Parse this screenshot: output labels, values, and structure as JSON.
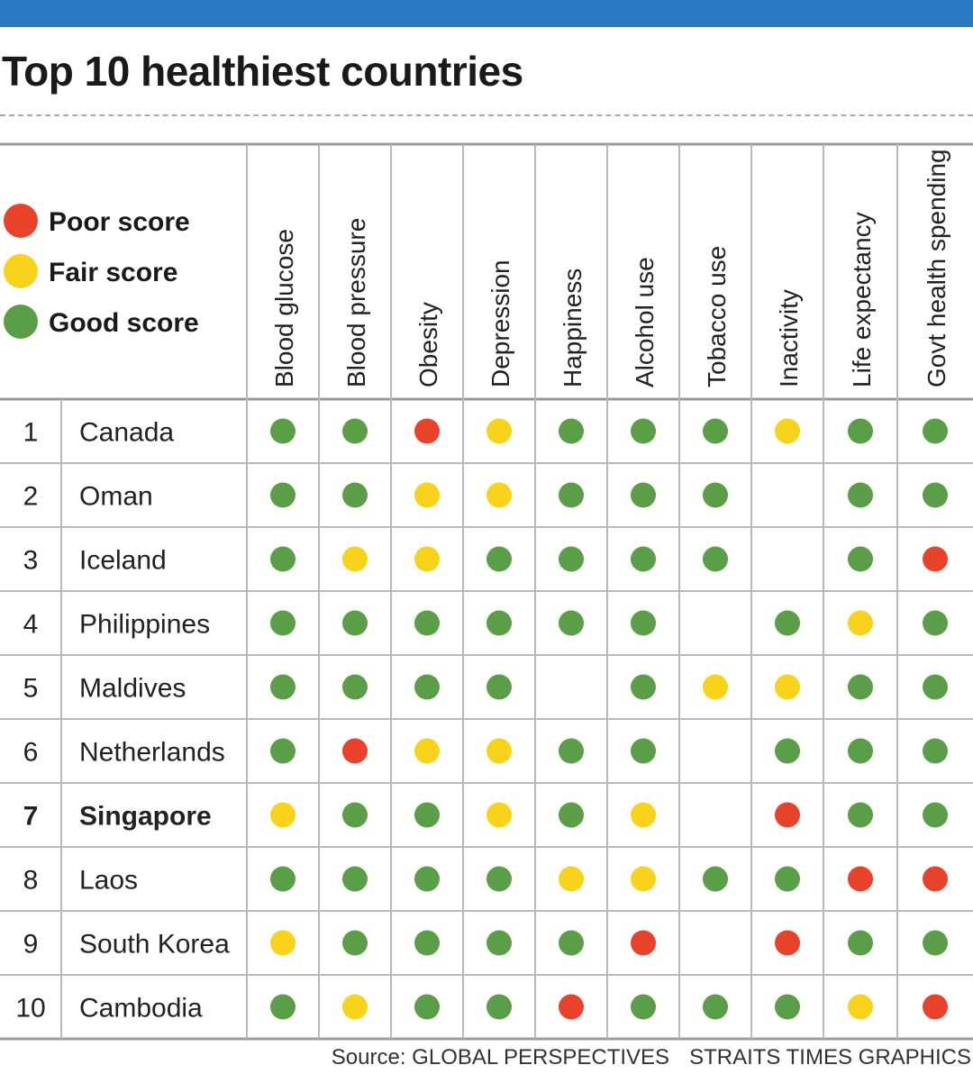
{
  "topbar_color": "#2a78bf",
  "title": "Top 10 healthiest countries",
  "legend": [
    {
      "key": "poor",
      "label": "Poor score",
      "color": "#e8432a"
    },
    {
      "key": "fair",
      "label": "Fair score",
      "color": "#f8d21b"
    },
    {
      "key": "good",
      "label": "Good score",
      "color": "#5a9e47"
    }
  ],
  "source": {
    "text": "Source: GLOBAL PERSPECTIVES",
    "credit": "STRAITS TIMES GRAPHICS"
  },
  "chart_data": {
    "type": "table",
    "title": "Top 10 healthiest countries",
    "columns": [
      "Blood glucose",
      "Blood pressure",
      "Obesity",
      "Depression",
      "Happiness",
      "Alcohol use",
      "Tobacco use",
      "Inactivity",
      "Life expectancy",
      "Govt health spending"
    ],
    "highlight_rank": "7",
    "rows": [
      {
        "rank": "1",
        "country": "Canada",
        "scores": [
          "good",
          "good",
          "poor",
          "fair",
          "good",
          "good",
          "good",
          "fair",
          "good",
          "good"
        ]
      },
      {
        "rank": "2",
        "country": "Oman",
        "scores": [
          "good",
          "good",
          "fair",
          "fair",
          "good",
          "good",
          "good",
          null,
          "good",
          "good"
        ]
      },
      {
        "rank": "3",
        "country": "Iceland",
        "scores": [
          "good",
          "fair",
          "fair",
          "good",
          "good",
          "good",
          "good",
          null,
          "good",
          "poor"
        ]
      },
      {
        "rank": "4",
        "country": "Philippines",
        "scores": [
          "good",
          "good",
          "good",
          "good",
          "good",
          "good",
          null,
          "good",
          "fair",
          "good"
        ]
      },
      {
        "rank": "5",
        "country": "Maldives",
        "scores": [
          "good",
          "good",
          "good",
          "good",
          null,
          "good",
          "fair",
          "fair",
          "good",
          "good"
        ]
      },
      {
        "rank": "6",
        "country": "Netherlands",
        "scores": [
          "good",
          "poor",
          "fair",
          "fair",
          "good",
          "good",
          null,
          "good",
          "good",
          "good"
        ]
      },
      {
        "rank": "7",
        "country": "Singapore",
        "scores": [
          "fair",
          "good",
          "good",
          "fair",
          "good",
          "fair",
          null,
          "poor",
          "good",
          "good"
        ]
      },
      {
        "rank": "8",
        "country": "Laos",
        "scores": [
          "good",
          "good",
          "good",
          "good",
          "fair",
          "fair",
          "good",
          "good",
          "poor",
          "poor"
        ]
      },
      {
        "rank": "9",
        "country": "South Korea",
        "scores": [
          "fair",
          "good",
          "good",
          "good",
          "good",
          "poor",
          null,
          "poor",
          "good",
          "good"
        ]
      },
      {
        "rank": "10",
        "country": "Cambodia",
        "scores": [
          "good",
          "fair",
          "good",
          "good",
          "poor",
          "good",
          "good",
          "good",
          "fair",
          "poor"
        ]
      }
    ]
  }
}
